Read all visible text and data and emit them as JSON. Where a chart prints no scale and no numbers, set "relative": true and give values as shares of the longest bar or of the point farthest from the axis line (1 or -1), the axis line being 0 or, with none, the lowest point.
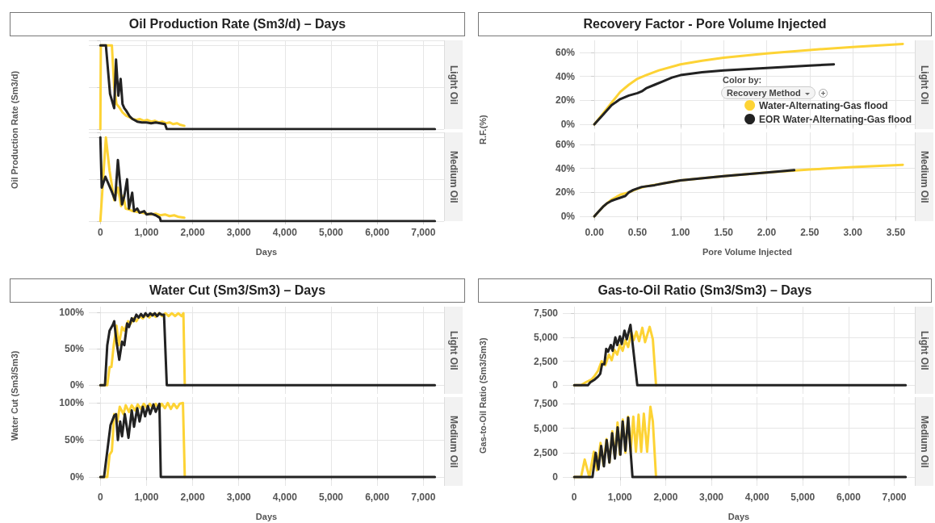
{
  "chart_data": [
    {
      "type": "line",
      "title": "Oil Production Rate (Sm3/d) – Days",
      "subtitle": "Light Oil",
      "ylabel": "Oil Production Rate (Sm3/d)",
      "relative": true,
      "grid": true,
      "tick_labels": false,
      "xlim": [
        -250,
        7450
      ],
      "xticks": [
        {
          "value": 0,
          "label": null
        },
        {
          "value": 1000,
          "label": null
        },
        {
          "value": 2000,
          "label": null
        },
        {
          "value": 3000,
          "label": null
        },
        {
          "value": 4000,
          "label": null
        },
        {
          "value": 5000,
          "label": null
        },
        {
          "value": 6000,
          "label": null
        },
        {
          "value": 7000,
          "label": null
        }
      ],
      "series": [
        {
          "color": "#fdd335",
          "x": [
            0,
            10,
            250,
            300,
            350,
            410,
            480,
            560,
            640,
            700,
            780,
            860,
            940,
            1020,
            1100,
            1180,
            1260,
            1340,
            1420,
            1500,
            1580,
            1660,
            1740,
            1820
          ],
          "values": [
            0,
            1,
            1,
            0.5,
            0.3,
            0.26,
            0.2,
            0.16,
            0.14,
            0.12,
            0.11,
            0.12,
            0.1,
            0.11,
            0.09,
            0.1,
            0.08,
            0.09,
            0.07,
            0.08,
            0.06,
            0.07,
            0.05,
            0.04
          ]
        },
        {
          "color": "#222222",
          "x": [
            0,
            120,
            210,
            300,
            340,
            390,
            440,
            480,
            520,
            560,
            640,
            700,
            800,
            900,
            1000,
            1100,
            1200,
            1300,
            1400,
            1440,
            7250
          ],
          "values": [
            1,
            1,
            0.42,
            0.25,
            0.83,
            0.4,
            0.6,
            0.3,
            0.25,
            0.22,
            0.15,
            0.12,
            0.09,
            0.08,
            0.08,
            0.07,
            0.08,
            0.07,
            0.06,
            0,
            0
          ]
        }
      ]
    },
    {
      "type": "line",
      "subtitle": "Medium Oil",
      "xlabel": "Days",
      "relative": true,
      "grid": true,
      "tick_labels": "x",
      "xlim": [
        -250,
        7450
      ],
      "xticks": [
        {
          "value": 0,
          "label": "0"
        },
        {
          "value": 1000,
          "label": "1,000"
        },
        {
          "value": 2000,
          "label": "2,000"
        },
        {
          "value": 3000,
          "label": "3,000"
        },
        {
          "value": 4000,
          "label": "4,000"
        },
        {
          "value": 5000,
          "label": "5,000"
        },
        {
          "value": 6000,
          "label": "6,000"
        },
        {
          "value": 7000,
          "label": "7,000"
        }
      ],
      "series": [
        {
          "color": "#fdd335",
          "x": [
            0,
            120,
            200,
            300,
            380,
            450,
            500,
            550,
            620,
            700,
            800,
            900,
            1000,
            1100,
            1200,
            1300,
            1400,
            1500,
            1600,
            1700,
            1820
          ],
          "values": [
            0,
            1,
            0.6,
            0.25,
            0.4,
            0.18,
            0.3,
            0.15,
            0.14,
            0.12,
            0.11,
            0.1,
            0.09,
            0.08,
            0.09,
            0.07,
            0.08,
            0.06,
            0.07,
            0.05,
            0.04
          ]
        },
        {
          "color": "#222222",
          "x": [
            0,
            30,
            110,
            250,
            320,
            380,
            470,
            520,
            580,
            620,
            690,
            730,
            800,
            850,
            950,
            1000,
            1100,
            1200,
            1290,
            1310,
            7250
          ],
          "values": [
            1,
            0.4,
            0.53,
            0.35,
            0.25,
            0.73,
            0.2,
            0.3,
            0.5,
            0.15,
            0.34,
            0.12,
            0.15,
            0.1,
            0.12,
            0.08,
            0.09,
            0.07,
            0.04,
            0,
            0
          ]
        }
      ]
    },
    {
      "type": "line",
      "title": "Recovery Factor - Pore Volume Injected",
      "subtitle": "Light Oil",
      "ylabel": "R.F.(%)",
      "legend_title": "Color by:",
      "annotations": [
        "Recovery Method"
      ],
      "legend": "right",
      "grid": true,
      "tick_labels": "y",
      "xlim": [
        -0.17,
        3.72
      ],
      "xticks": [
        {
          "value": 0,
          "label": null
        },
        {
          "value": 0.5,
          "label": null
        },
        {
          "value": 1,
          "label": null
        },
        {
          "value": 1.5,
          "label": null
        },
        {
          "value": 2,
          "label": null
        },
        {
          "value": 2.5,
          "label": null
        },
        {
          "value": 3,
          "label": null
        },
        {
          "value": 3.5,
          "label": null
        }
      ],
      "ylim": [
        -4,
        70
      ],
      "yticks": [
        {
          "value": 0,
          "label": "0%"
        },
        {
          "value": 20,
          "label": "20%"
        },
        {
          "value": 40,
          "label": "40%"
        },
        {
          "value": 60,
          "label": "60%"
        }
      ],
      "series": [
        {
          "name": "Water-Alternating-Gas flood",
          "color": "#fdd335",
          "x": [
            0,
            0.1,
            0.2,
            0.3,
            0.4,
            0.5,
            0.6,
            0.75,
            1,
            1.25,
            1.5,
            2,
            2.5,
            3,
            3.58
          ],
          "values": [
            0,
            9,
            18,
            27,
            33,
            38,
            41,
            45,
            50,
            53,
            55.5,
            59,
            62,
            64.5,
            67
          ]
        },
        {
          "name": "EOR Water-Alternating-Gas flood",
          "color": "#222222",
          "x": [
            0,
            0.1,
            0.2,
            0.3,
            0.4,
            0.5,
            0.55,
            0.6,
            0.7,
            0.8,
            0.9,
            1,
            1.25,
            1.5,
            2,
            2.5,
            2.78
          ],
          "values": [
            0,
            8,
            16,
            21,
            24,
            26,
            27.5,
            30,
            33,
            36,
            39,
            41,
            43.5,
            45,
            47,
            49,
            50
          ]
        }
      ]
    },
    {
      "type": "line",
      "subtitle": "Medium Oil",
      "xlabel": "Pore Volume Injected",
      "grid": true,
      "xlim": [
        -0.17,
        3.72
      ],
      "xticks": [
        {
          "value": 0,
          "label": "0.00"
        },
        {
          "value": 0.5,
          "label": "0.50"
        },
        {
          "value": 1,
          "label": "1.00"
        },
        {
          "value": 1.5,
          "label": "1.50"
        },
        {
          "value": 2,
          "label": "2.00"
        },
        {
          "value": 2.5,
          "label": "2.50"
        },
        {
          "value": 3,
          "label": "3.00"
        },
        {
          "value": 3.5,
          "label": "3.50"
        }
      ],
      "ylim": [
        -4,
        70
      ],
      "yticks": [
        {
          "value": 0,
          "label": "0%"
        },
        {
          "value": 20,
          "label": "20%"
        },
        {
          "value": 40,
          "label": "40%"
        },
        {
          "value": 60,
          "label": "60%"
        }
      ],
      "series": [
        {
          "color": "#fdd335",
          "x": [
            0,
            0.1,
            0.2,
            0.3,
            0.4,
            0.5,
            0.6,
            0.8,
            1,
            1.5,
            2,
            2.5,
            3,
            3.58
          ],
          "values": [
            0,
            8,
            14,
            18,
            20,
            23,
            25,
            27.5,
            30,
            33.5,
            36.5,
            39,
            41,
            43
          ]
        },
        {
          "color": "#222222",
          "x": [
            0,
            0.05,
            0.1,
            0.15,
            0.2,
            0.3,
            0.36,
            0.4,
            0.45,
            0.55,
            0.7,
            0.8,
            1,
            1.5,
            2,
            2.32
          ],
          "values": [
            0,
            4,
            8,
            11,
            13,
            15.5,
            17,
            20,
            22,
            24.5,
            26,
            27.5,
            30,
            33.5,
            36.5,
            38.5
          ]
        }
      ]
    },
    {
      "type": "line",
      "title": "Water Cut (Sm3/Sm3) – Days",
      "subtitle": "Light Oil",
      "ylabel": "Water Cut (Sm3/Sm3)",
      "grid": true,
      "tick_labels": "y",
      "xlim": [
        -250,
        7450
      ],
      "xticks": [
        {
          "value": 0,
          "label": null
        },
        {
          "value": 1000,
          "label": null
        },
        {
          "value": 2000,
          "label": null
        },
        {
          "value": 3000,
          "label": null
        },
        {
          "value": 4000,
          "label": null
        },
        {
          "value": 5000,
          "label": null
        },
        {
          "value": 6000,
          "label": null
        },
        {
          "value": 7000,
          "label": null
        }
      ],
      "ylim": [
        -12,
        108
      ],
      "yticks": [
        {
          "value": 0,
          "label": "0%"
        },
        {
          "value": 50,
          "label": "50%"
        },
        {
          "value": 100,
          "label": "100%"
        }
      ],
      "series": [
        {
          "color": "#fdd335",
          "x": [
            0,
            150,
            200,
            240,
            290,
            350,
            400,
            470,
            520,
            600,
            650,
            720,
            780,
            850,
            920,
            990,
            1060,
            1130,
            1200,
            1270,
            1340,
            1410,
            1480,
            1550,
            1620,
            1690,
            1760,
            1800,
            1830
          ],
          "values": [
            0,
            0,
            25,
            25,
            55,
            82,
            55,
            80,
            75,
            88,
            84,
            92,
            88,
            95,
            92,
            97,
            93,
            98,
            94,
            99,
            95,
            99,
            95,
            99,
            95,
            99,
            95,
            99,
            0
          ]
        },
        {
          "color": "#222222",
          "x": [
            0,
            100,
            150,
            200,
            270,
            300,
            350,
            410,
            470,
            520,
            580,
            620,
            680,
            720,
            780,
            830,
            880,
            930,
            980,
            1030,
            1080,
            1130,
            1180,
            1230,
            1280,
            1330,
            1380,
            1440,
            7250
          ],
          "values": [
            0,
            0,
            55,
            75,
            83,
            88,
            60,
            35,
            60,
            55,
            85,
            80,
            92,
            88,
            97,
            93,
            98,
            94,
            99,
            95,
            99,
            96,
            99,
            95,
            99,
            97,
            97,
            0,
            0
          ]
        }
      ]
    },
    {
      "type": "line",
      "subtitle": "Medium Oil",
      "xlabel": "Days",
      "grid": true,
      "xlim": [
        -250,
        7450
      ],
      "xticks": [
        {
          "value": 0,
          "label": "0"
        },
        {
          "value": 1000,
          "label": "1,000"
        },
        {
          "value": 2000,
          "label": "2,000"
        },
        {
          "value": 3000,
          "label": "3,000"
        },
        {
          "value": 4000,
          "label": "4,000"
        },
        {
          "value": 5000,
          "label": "5,000"
        },
        {
          "value": 6000,
          "label": "6,000"
        },
        {
          "value": 7000,
          "label": "7,000"
        }
      ],
      "ylim": [
        -12,
        108
      ],
      "yticks": [
        {
          "value": 0,
          "label": "0%"
        },
        {
          "value": 50,
          "label": "50%"
        },
        {
          "value": 100,
          "label": "100%"
        }
      ],
      "series": [
        {
          "color": "#fdd335",
          "x": [
            0,
            150,
            200,
            250,
            300,
            370,
            420,
            500,
            550,
            620,
            680,
            750,
            810,
            880,
            940,
            1010,
            1070,
            1140,
            1200,
            1270,
            1330,
            1400,
            1460,
            1530,
            1590,
            1660,
            1720,
            1790,
            1830
          ],
          "values": [
            0,
            0,
            30,
            35,
            85,
            75,
            95,
            85,
            97,
            88,
            97,
            90,
            98,
            92,
            99,
            93,
            99,
            93,
            99,
            92,
            99,
            93,
            100,
            92,
            99,
            93,
            99,
            100,
            0
          ]
        },
        {
          "color": "#222222",
          "x": [
            0,
            80,
            170,
            220,
            300,
            340,
            380,
            430,
            470,
            530,
            610,
            680,
            730,
            800,
            850,
            920,
            970,
            1030,
            1080,
            1150,
            1200,
            1280,
            1310,
            7250
          ],
          "values": [
            0,
            0,
            45,
            70,
            83,
            85,
            50,
            75,
            55,
            85,
            53,
            90,
            68,
            93,
            75,
            95,
            82,
            96,
            85,
            98,
            88,
            99,
            0,
            0
          ]
        }
      ]
    },
    {
      "type": "line",
      "title": "Gas-to-Oil Ratio (Sm3/Sm3) – Days",
      "subtitle": "Light Oil",
      "ylabel": "Gas-to-Oil Ratio (Sm3/Sm3)",
      "grid": true,
      "tick_labels": "y",
      "xlim": [
        -250,
        7450
      ],
      "xticks": [
        {
          "value": 0,
          "label": null
        },
        {
          "value": 1000,
          "label": null
        },
        {
          "value": 2000,
          "label": null
        },
        {
          "value": 3000,
          "label": null
        },
        {
          "value": 4000,
          "label": null
        },
        {
          "value": 5000,
          "label": null
        },
        {
          "value": 6000,
          "label": null
        },
        {
          "value": 7000,
          "label": null
        }
      ],
      "ylim": [
        -900,
        8200
      ],
      "yticks": [
        {
          "value": 0,
          "label": "0"
        },
        {
          "value": 2500,
          "label": "2,500"
        },
        {
          "value": 5000,
          "label": "5,000"
        },
        {
          "value": 7500,
          "label": "7,500"
        }
      ],
      "series": [
        {
          "color": "#fdd335",
          "x": [
            0,
            150,
            250,
            380,
            450,
            520,
            600,
            680,
            760,
            820,
            880,
            940,
            1000,
            1060,
            1120,
            1180,
            1250,
            1300,
            1360,
            1420,
            1490,
            1550,
            1650,
            1720,
            1790
          ],
          "values": [
            0,
            0,
            300,
            600,
            1000,
            1500,
            2500,
            2100,
            3200,
            2600,
            3700,
            3200,
            4200,
            3600,
            4700,
            4000,
            5500,
            4700,
            5600,
            4600,
            6000,
            4500,
            6100,
            4800,
            0
          ]
        },
        {
          "color": "#222222",
          "x": [
            0,
            300,
            350,
            450,
            520,
            570,
            610,
            660,
            700,
            740,
            800,
            840,
            900,
            940,
            1000,
            1040,
            1100,
            1150,
            1230,
            1250,
            1380,
            7250
          ],
          "values": [
            0,
            0,
            300,
            600,
            900,
            1200,
            2200,
            2200,
            3800,
            3500,
            4200,
            3600,
            5000,
            4200,
            5100,
            4300,
            5700,
            4800,
            6300,
            5500,
            0,
            0
          ]
        }
      ]
    },
    {
      "type": "line",
      "subtitle": "Medium Oil",
      "xlabel": "Days",
      "grid": true,
      "xlim": [
        -250,
        7450
      ],
      "xticks": [
        {
          "value": 0,
          "label": "0"
        },
        {
          "value": 1000,
          "label": "1,000"
        },
        {
          "value": 2000,
          "label": "2,000"
        },
        {
          "value": 3000,
          "label": "3,000"
        },
        {
          "value": 4000,
          "label": "4,000"
        },
        {
          "value": 5000,
          "label": "5,000"
        },
        {
          "value": 6000,
          "label": "6,000"
        },
        {
          "value": 7000,
          "label": "7,000"
        }
      ],
      "ylim": [
        -900,
        8200
      ],
      "yticks": [
        {
          "value": 0,
          "label": "0"
        },
        {
          "value": 2500,
          "label": "2,500"
        },
        {
          "value": 5000,
          "label": "5,000"
        },
        {
          "value": 7500,
          "label": "7,500"
        }
      ],
      "series": [
        {
          "color": "#fdd335",
          "x": [
            0,
            150,
            230,
            330,
            430,
            500,
            575,
            640,
            707,
            770,
            833,
            890,
            948,
            1000,
            1063,
            1120,
            1178,
            1235,
            1293,
            1350,
            1408,
            1465,
            1523,
            1595,
            1667,
            1720,
            1790
          ],
          "values": [
            0,
            0,
            1800,
            0,
            2600,
            700,
            3500,
            1200,
            3900,
            1500,
            4700,
            2000,
            5600,
            2300,
            5900,
            2500,
            6200,
            2600,
            6200,
            2600,
            6400,
            2600,
            6500,
            2600,
            7200,
            5700,
            0
          ]
        },
        {
          "color": "#222222",
          "x": [
            0,
            400,
            470,
            530,
            590,
            650,
            710,
            770,
            830,
            890,
            950,
            1010,
            1060,
            1120,
            1180,
            1275,
            7250
          ],
          "values": [
            0,
            0,
            2500,
            800,
            3200,
            1100,
            3800,
            1500,
            4500,
            1900,
            5100,
            2300,
            5700,
            2700,
            6100,
            0,
            0
          ]
        }
      ]
    }
  ]
}
